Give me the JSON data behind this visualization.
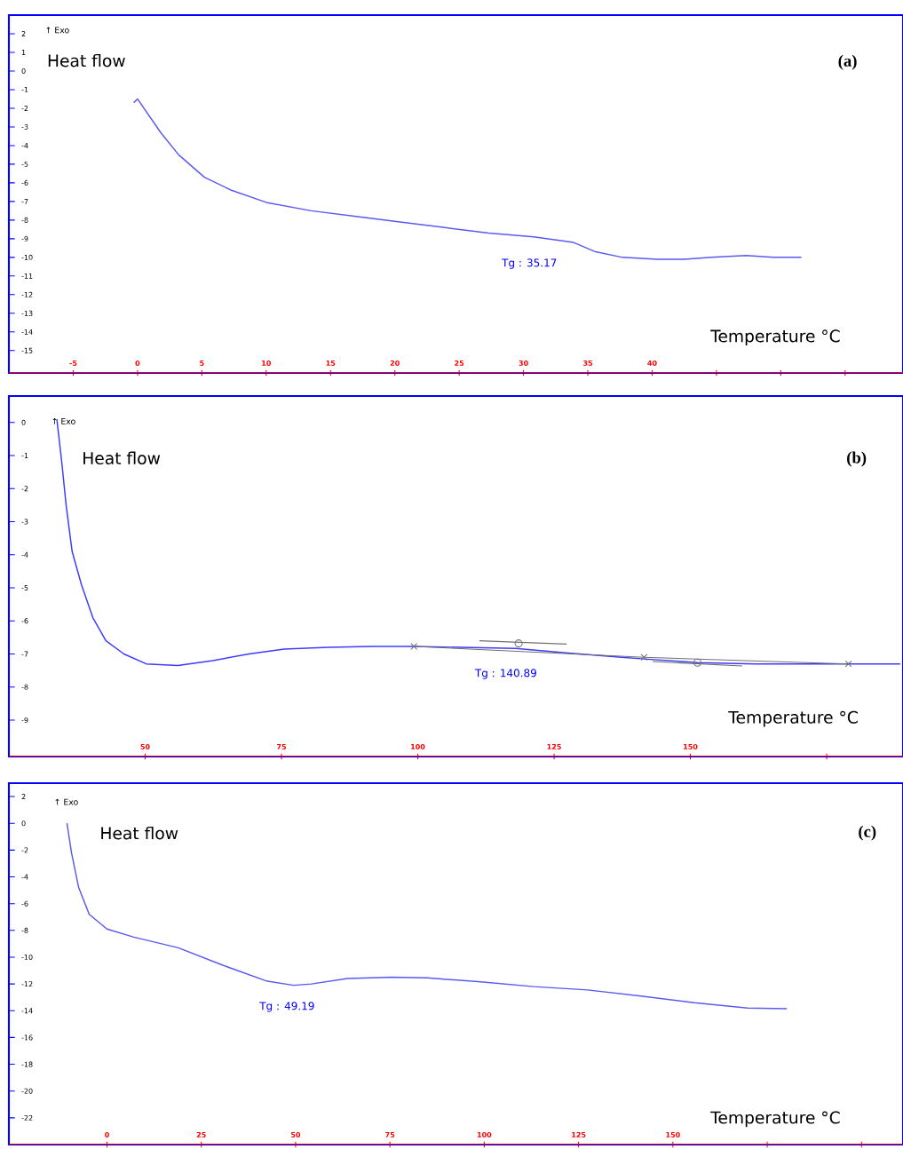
{
  "chart_data": [
    {
      "type": "line",
      "title": "(a)",
      "xlabel": "Temperature °C",
      "ylabel": "Heat flow",
      "annotations": [
        "↑ Exo",
        "Tg : 35.17"
      ],
      "xlim": [
        -10,
        59.5
      ],
      "ylim": [
        -16.2,
        3
      ],
      "xticks": [
        -5,
        0,
        5,
        10,
        15,
        20,
        25,
        30,
        35,
        40,
        {
          "value": 45,
          "label": null
        },
        {
          "value": 50,
          "label": null
        },
        {
          "value": 55,
          "label": null
        }
      ],
      "yticks": [
        2,
        1,
        0,
        -1,
        -2,
        -3,
        -4,
        -5,
        -6,
        -7,
        -8,
        -9,
        -10,
        -11,
        -12,
        -13,
        -14,
        -15
      ],
      "series": [
        {
          "color": "#5a5af0",
          "x": [
            -0.3,
            0,
            1.8,
            3.2,
            5.2,
            7.3,
            10,
            13.5,
            17,
            20.4,
            23.9,
            27.3,
            30.8,
            33.9,
            35.6,
            37.7,
            40.4,
            42.5,
            44.6,
            47.3,
            49.4,
            51.6
          ],
          "values": [
            -1.7,
            -1.5,
            -3.3,
            -4.5,
            -5.7,
            -6.4,
            -7.05,
            -7.5,
            -7.8,
            -8.1,
            -8.4,
            -8.7,
            -8.9,
            -9.2,
            -9.7,
            -10.0,
            -10.1,
            -10.1,
            -10.0,
            -9.9,
            -10.0,
            -10.0
          ]
        }
      ]
    },
    {
      "type": "line",
      "title": "(b)",
      "xlabel": "Temperature °C",
      "ylabel": "Heat flow",
      "annotations": [
        "↑ Exo",
        "Tg : 140.89"
      ],
      "xlim": [
        25,
        189
      ],
      "ylim": [
        -10.1,
        0.8
      ],
      "xticks": [
        50,
        75,
        100,
        125,
        150,
        {
          "value": 175,
          "label": null
        }
      ],
      "yticks": [
        0,
        -1,
        -2,
        -3,
        -4,
        -5,
        -6,
        -7,
        -8,
        -9
      ],
      "series": [
        {
          "color": "#3c3cff",
          "x": [
            33.8,
            34.7,
            35.5,
            36.6,
            38.3,
            40.4,
            42.8,
            46.1,
            50.2,
            56,
            62.4,
            69,
            75.5,
            83.6,
            91.8,
            99.3,
            108,
            117.9,
            127.7,
            137.4,
            141.5,
            151.3,
            161.9,
            179,
            188.5
          ],
          "values": [
            0.1,
            -1.2,
            -2.5,
            -3.9,
            -4.9,
            -5.9,
            -6.6,
            -7.0,
            -7.3,
            -7.35,
            -7.2,
            -7.0,
            -6.85,
            -6.8,
            -6.77,
            -6.77,
            -6.8,
            -6.83,
            -6.97,
            -7.1,
            -7.15,
            -7.26,
            -7.3,
            -7.3,
            -7.3
          ]
        },
        {
          "type": "line",
          "color": "#707070",
          "marker": "cross",
          "x": [
            99.3,
            141.5,
            179
          ],
          "values": [
            -6.77,
            -7.1,
            -7.3
          ]
        },
        {
          "type": "line",
          "color": "#707070",
          "x": [
            111.3,
            127.3
          ],
          "values": [
            -6.6,
            -6.7
          ]
        },
        {
          "type": "line",
          "color": "#707070",
          "x": [
            143.1,
            159.5
          ],
          "values": [
            -7.23,
            -7.36
          ]
        },
        {
          "type": "scatter",
          "color": "#707070",
          "marker": "circle",
          "x": [
            118.5,
            151.3
          ],
          "values": [
            -6.68,
            -7.26
          ]
        }
      ]
    },
    {
      "type": "line",
      "title": "(c)",
      "xlabel": "Temperature °C",
      "ylabel": "Heat flow",
      "annotations": [
        "↑ Exo",
        "Tg : 49.19"
      ],
      "xlim": [
        -26,
        211
      ],
      "ylim": [
        -24,
        3
      ],
      "xticks": [
        0,
        25,
        50,
        75,
        100,
        125,
        150,
        {
          "value": 175,
          "label": null
        },
        {
          "value": 200,
          "label": null
        }
      ],
      "yticks": [
        2,
        0,
        -2,
        -4,
        -6,
        -8,
        -10,
        -12,
        -14,
        -16,
        -18,
        -20,
        -22
      ],
      "series": [
        {
          "color": "#5a5af0",
          "x": [
            -10.6,
            -9.4,
            -7.5,
            -4.7,
            0,
            7.1,
            18.9,
            30.7,
            42.5,
            49.5,
            54.2,
            63.7,
            75.5,
            84.9,
            99.1,
            113.2,
            127.4,
            141.5,
            155.7,
            169.8,
            180.2
          ],
          "values": [
            0,
            -2.2,
            -4.8,
            -6.8,
            -7.9,
            -8.5,
            -9.3,
            -10.6,
            -11.8,
            -12.1,
            -12.0,
            -11.6,
            -11.5,
            -11.55,
            -11.85,
            -12.2,
            -12.45,
            -12.9,
            -13.4,
            -13.8,
            -13.85
          ]
        }
      ]
    }
  ]
}
